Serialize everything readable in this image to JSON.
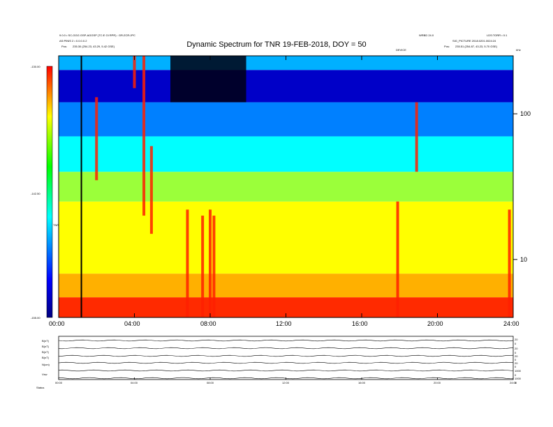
{
  "header": {
    "title": "Dynamic Spectrum for TNR 19-FEB-2018, DOY = 50",
    "left_line1": "9.0.0 • SC-GGG GSP-AGGSP (TC:E GI RPR) : GR:ZCR:JPC",
    "left_line2": "AS:PINIS 2 • 0.0.0.0.2",
    "left_pos_label": "Pos:",
    "left_pos_value": "235.30 (254.23, 43.29, 5.42 GSE)",
    "right_line1": "WRBD 24.0",
    "right_line2": "LDS:TORR • 0:1",
    "right_line3": "SIG_PICTURE 2018.0201.0024:24",
    "right_pos_label": "Pos:",
    "right_pos_value": "235.51 (254.87, 43.23, 5.70 GSE)",
    "marker_label": "DEVICE"
  },
  "chart_data": [
    {
      "type": "heatmap",
      "title": "Dynamic Spectrum for TNR 19-FEB-2018, DOY = 50",
      "xlabel": "",
      "ylabel": "",
      "x_ticks": [
        "00:00",
        "04:00",
        "08:00",
        "12:00",
        "16:00",
        "20:00",
        "24:00"
      ],
      "x_range_hours": [
        0,
        24
      ],
      "y_scale": "log",
      "y_range_khz": [
        4,
        250
      ],
      "y_tick_labels": [
        "10",
        "100"
      ],
      "y_tick_values": [
        10,
        100
      ],
      "y_top_label": "kHz",
      "colorbar": {
        "ticks": [
          "-130.00",
          "-142.50",
          "-155.00"
        ],
        "range": [
          -155,
          -130
        ],
        "label": "TNR",
        "colors": [
          "#000080",
          "#0000ff",
          "#00ffff",
          "#00ff00",
          "#ffff00",
          "#ff0000"
        ]
      },
      "bands": [
        {
          "freq_khz": [
            4,
            5.5
          ],
          "color": "#ff2a00"
        },
        {
          "freq_khz": [
            5.5,
            8
          ],
          "color": "#ffb000"
        },
        {
          "freq_khz": [
            8,
            25
          ],
          "color": "#ffff00"
        },
        {
          "freq_khz": [
            25,
            40
          ],
          "color": "#9bff3a"
        },
        {
          "freq_khz": [
            40,
            70
          ],
          "color": "#00ffff"
        },
        {
          "freq_khz": [
            70,
            120
          ],
          "color": "#0080ff"
        },
        {
          "freq_khz": [
            120,
            200
          ],
          "color": "#0000c8"
        },
        {
          "freq_khz": [
            200,
            250
          ],
          "color": "#00b0ff"
        }
      ],
      "bursts": [
        {
          "t": 2.0,
          "f": [
            35,
            130
          ]
        },
        {
          "t": 4.0,
          "f": [
            150,
            250
          ]
        },
        {
          "t": 4.5,
          "f": [
            20,
            250
          ]
        },
        {
          "t": 4.9,
          "f": [
            15,
            60
          ]
        },
        {
          "t": 6.8,
          "f": [
            4,
            22
          ]
        },
        {
          "t": 7.6,
          "f": [
            4,
            20
          ]
        },
        {
          "t": 8.0,
          "f": [
            4,
            22
          ]
        },
        {
          "t": 8.2,
          "f": [
            4,
            20
          ]
        },
        {
          "t": 17.9,
          "f": [
            4,
            25
          ]
        },
        {
          "t": 18.9,
          "f": [
            40,
            120
          ]
        },
        {
          "t": 23.8,
          "f": [
            4,
            22
          ]
        }
      ],
      "dark_region": {
        "t": [
          5.9,
          9.9
        ],
        "f": [
          120,
          250
        ]
      },
      "marker_line_hour": 1.2
    },
    {
      "type": "line",
      "title": "",
      "x_ticks": [
        "00:00",
        "04:00",
        "08:00",
        "12:00",
        "16:00",
        "20:00",
        "24:00"
      ],
      "panels": [
        {
          "left_label": "B(nT)",
          "right_labels": [
            "20",
            "0"
          ]
        },
        {
          "left_label": "B(nT)",
          "right_labels": [
            "20",
            "0"
          ]
        },
        {
          "left_label": "B(nT)",
          "right_labels": [
            "20",
            "0"
          ]
        },
        {
          "left_label": "B(nT)",
          "right_labels": [
            "20",
            "0"
          ]
        },
        {
          "left_label": "N(cm)",
          "right_labels": [
            "1000",
            "0"
          ]
        },
        {
          "left_label": "Vsw",
          "right_labels": [
            "1000",
            "0"
          ]
        }
      ],
      "footer_label": "Status"
    }
  ]
}
